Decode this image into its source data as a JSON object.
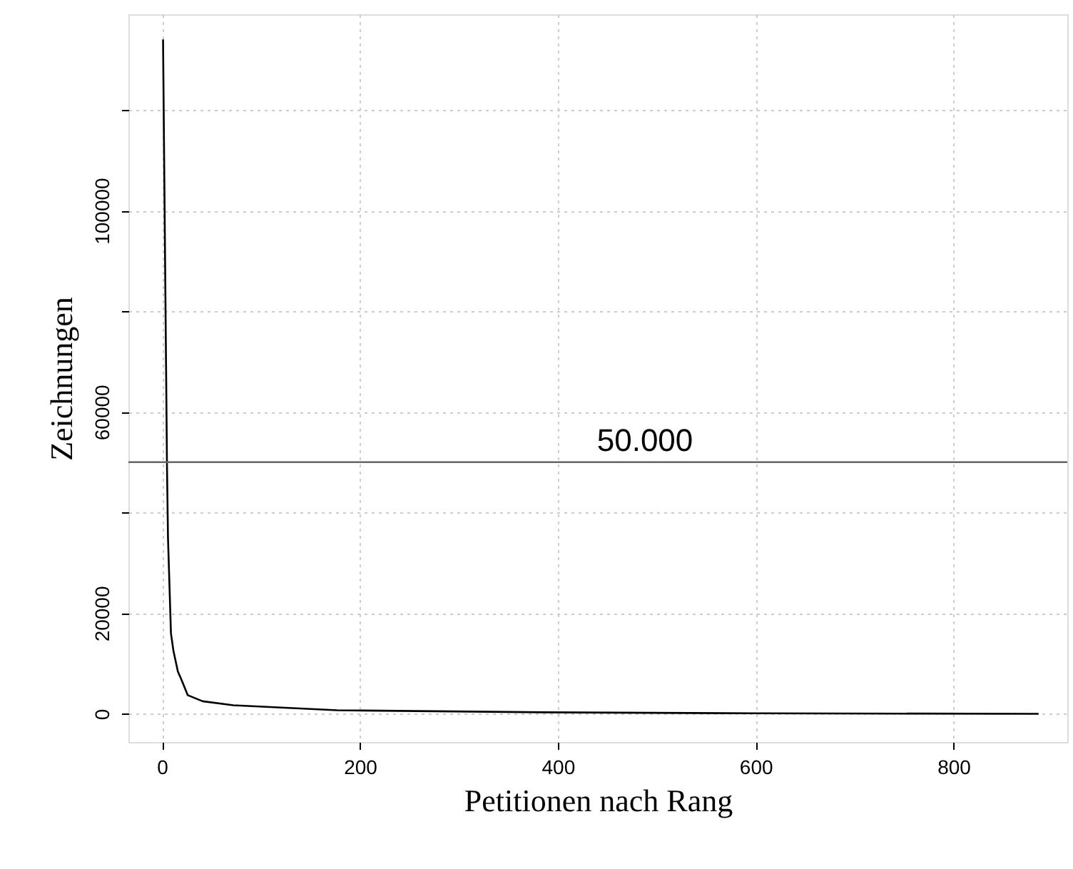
{
  "chart_data": {
    "type": "line",
    "xlabel": "Petitionen nach Rang",
    "ylabel": "Zeichnungen",
    "x": [
      1,
      5,
      6,
      9,
      11.5,
      16,
      20,
      26,
      41,
      72,
      177,
      386,
      596,
      886
    ],
    "series": [
      {
        "color": "#000000",
        "values": [
          134000,
          49000,
          35000,
          16000,
          12500,
          8400,
          6600,
          3700,
          2500,
          1700,
          700,
          300,
          100,
          0
        ]
      }
    ],
    "xlim": [
      -34,
      915
    ],
    "ylim": [
      -5600,
      139000
    ],
    "xticks": [
      0,
      200,
      400,
      600,
      800
    ],
    "yticks": [
      0,
      20000,
      {
        "value": 40000,
        "label": null
      },
      60000,
      {
        "value": 80000,
        "label": null
      },
      100000,
      {
        "value": 120000,
        "label": null
      }
    ],
    "ref_lines": [
      {
        "axis": "y",
        "value": 50000,
        "label": "50.000",
        "color": "#666666"
      }
    ],
    "grid": true,
    "line_style": "solid",
    "marker": "none"
  }
}
